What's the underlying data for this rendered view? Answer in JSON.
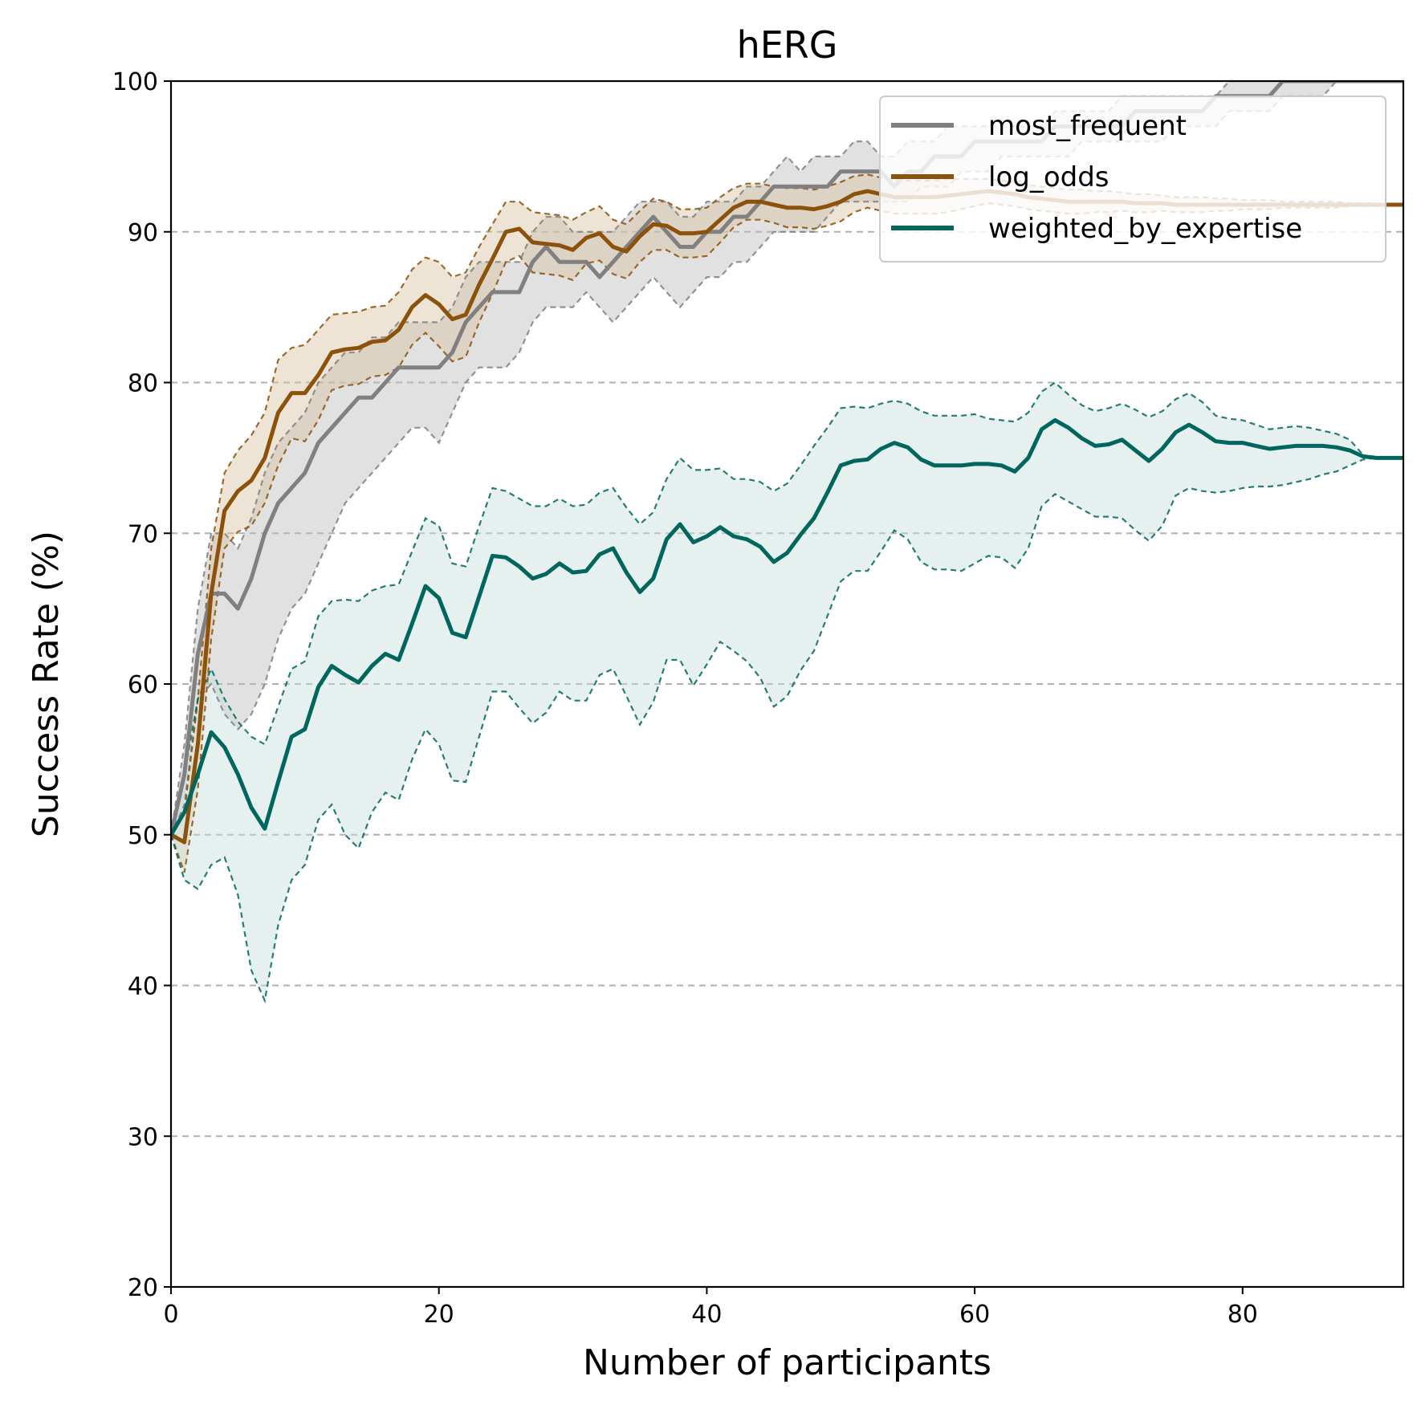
{
  "chart_data": {
    "type": "line",
    "title": "hERG",
    "xlabel": "Number of participants",
    "ylabel": "Success Rate (%)",
    "xlim": [
      0,
      92
    ],
    "ylim": [
      20,
      100
    ],
    "xticks": [
      0,
      20,
      40,
      60,
      80
    ],
    "yticks": [
      20,
      30,
      40,
      50,
      60,
      70,
      80,
      90,
      100
    ],
    "grid": "horizontal dashed",
    "legend_position": "top-right",
    "x": [
      0,
      1,
      2,
      3,
      4,
      5,
      6,
      7,
      8,
      9,
      10,
      11,
      12,
      13,
      14,
      15,
      16,
      17,
      18,
      19,
      20,
      21,
      22,
      23,
      24,
      25,
      26,
      27,
      28,
      29,
      30,
      31,
      32,
      33,
      34,
      35,
      36,
      37,
      38,
      39,
      40,
      41,
      42,
      43,
      44,
      45,
      46,
      47,
      48,
      49,
      50,
      51,
      52,
      53,
      54,
      55,
      56,
      57,
      58,
      59,
      60,
      61,
      62,
      63,
      64,
      65,
      66,
      67,
      68,
      69,
      70,
      71,
      72,
      73,
      74,
      75,
      76,
      77,
      78,
      79,
      80,
      81,
      82,
      83,
      84,
      85,
      86,
      87,
      88,
      89,
      90,
      91,
      92
    ],
    "series": [
      {
        "name": "most_frequent",
        "color": "#808080",
        "band_color": "#bdbdbd",
        "values": [
          50,
          54,
          62,
          66,
          66,
          65,
          67,
          70,
          72,
          73,
          74,
          76,
          77,
          78,
          79,
          79,
          80,
          81,
          81,
          81,
          81,
          82,
          84,
          85,
          86,
          86,
          86,
          88,
          89,
          88,
          88,
          88,
          87,
          88,
          89,
          90,
          91,
          90,
          89,
          89,
          90,
          90,
          91,
          91,
          92,
          93,
          93,
          93,
          93,
          93,
          94,
          94,
          94,
          94,
          93,
          94,
          94,
          95,
          95,
          95,
          96,
          96,
          96,
          96,
          96,
          96,
          97,
          97,
          97,
          97,
          97,
          97,
          98,
          98,
          98,
          98,
          98,
          98,
          99,
          99,
          99,
          99,
          99,
          100,
          100,
          100,
          100,
          100,
          100,
          100,
          100,
          100,
          100
        ],
        "upper": [
          50,
          56,
          65,
          70,
          70,
          69,
          71,
          74,
          76,
          77,
          78,
          80,
          81,
          82,
          82,
          83,
          83,
          84,
          84,
          84,
          84,
          85,
          87,
          88,
          88,
          88,
          88,
          90,
          91,
          91,
          90,
          90,
          90,
          90,
          91,
          92,
          92,
          92,
          91,
          91,
          92,
          92,
          92,
          93,
          93,
          94,
          95,
          94,
          95,
          95,
          95,
          96,
          96,
          95,
          95,
          96,
          96,
          96,
          97,
          97,
          97,
          97,
          97,
          97,
          97,
          97,
          98,
          98,
          98,
          98,
          98,
          99,
          99,
          99,
          99,
          99,
          99,
          99,
          99,
          100,
          100,
          100,
          100,
          100,
          100,
          100,
          100,
          100,
          100,
          100,
          100,
          100,
          100
        ],
        "lower": [
          50,
          52,
          59,
          60,
          58,
          57,
          58,
          60,
          63,
          65,
          66,
          68,
          70,
          72,
          73,
          74,
          75,
          76,
          77,
          77,
          76,
          78,
          80,
          81,
          81,
          81,
          82,
          84,
          85,
          85,
          85,
          86,
          85,
          84,
          85,
          86,
          87,
          86,
          85,
          86,
          87,
          87,
          88,
          88,
          89,
          90,
          90,
          90,
          90,
          91,
          92,
          92,
          92,
          92,
          92,
          92,
          93,
          93,
          93,
          94,
          94,
          94,
          95,
          95,
          95,
          95,
          95,
          95,
          96,
          96,
          96,
          96,
          96,
          96,
          96,
          97,
          97,
          97,
          97,
          98,
          98,
          98,
          98,
          99,
          99,
          99,
          99,
          100,
          100,
          100,
          100,
          100,
          100
        ]
      },
      {
        "name": "log_odds",
        "color": "#8c510a",
        "band_color": "#d8c3a5",
        "values": [
          50,
          49.5,
          56,
          66,
          71.5,
          72.8,
          73.5,
          75,
          78,
          79.3,
          79.3,
          80.5,
          82,
          82.2,
          82.3,
          82.7,
          82.8,
          83.5,
          85,
          85.8,
          85.2,
          84.2,
          84.5,
          86.5,
          88.2,
          90,
          90.2,
          89.3,
          89.2,
          89.1,
          88.8,
          89.6,
          89.9,
          89,
          88.7,
          89.7,
          90.5,
          90.4,
          89.9,
          89.9,
          90,
          90.8,
          91.6,
          92,
          92,
          91.8,
          91.6,
          91.6,
          91.5,
          91.7,
          92,
          92.5,
          92.7,
          92.5,
          92.3,
          92.3,
          92.3,
          92.3,
          92.4,
          92.5,
          92.6,
          92.7,
          92.6,
          92.5,
          92.3,
          92.2,
          92.1,
          92,
          92,
          92,
          92,
          92,
          91.9,
          91.9,
          91.9,
          91.8,
          91.8,
          91.8,
          91.8,
          91.8,
          91.8,
          91.8,
          91.8,
          91.8,
          91.8,
          91.8,
          91.8,
          91.8,
          91.8,
          91.8,
          91.8,
          91.8,
          91.8
        ],
        "upper": [
          50,
          51.5,
          59,
          69,
          74,
          75.5,
          76.5,
          78,
          81.5,
          82.3,
          82.5,
          83.5,
          84.5,
          84.6,
          84.7,
          85,
          85.1,
          86,
          87.5,
          88.3,
          88,
          87,
          87.3,
          89,
          90.5,
          92,
          92,
          91.3,
          91.2,
          91.1,
          90.8,
          91.3,
          91.7,
          90.8,
          90.5,
          91.4,
          92.2,
          92,
          91.5,
          91.5,
          91.6,
          92.3,
          92.9,
          93.2,
          93.2,
          93,
          92.9,
          92.9,
          92.8,
          93,
          93.3,
          93.7,
          93.8,
          93.6,
          93.4,
          93.4,
          93.4,
          93.4,
          93.5,
          93.5,
          93.5,
          93.5,
          93.4,
          93.3,
          93.1,
          93,
          92.9,
          92.8,
          92.8,
          92.7,
          92.7,
          92.6,
          92.5,
          92.5,
          92.4,
          92.3,
          92.3,
          92.3,
          92.2,
          92.2,
          92.1,
          92.1,
          92.1,
          92,
          92,
          92,
          92,
          92,
          91.9,
          91.9,
          91.9,
          91.8,
          91.8
        ],
        "lower": [
          50,
          47.5,
          53,
          63,
          69,
          70.1,
          70.5,
          72,
          74.5,
          76.3,
          76.1,
          77.5,
          79.5,
          79.8,
          79.9,
          80.4,
          80.5,
          81,
          82.5,
          83.3,
          82.4,
          81.4,
          81.7,
          84,
          85.9,
          88,
          88.4,
          87.3,
          87.2,
          87.1,
          86.8,
          87.9,
          88.1,
          87.2,
          86.9,
          88,
          88.8,
          88.8,
          88.3,
          88.3,
          88.4,
          89.3,
          90.3,
          90.8,
          90.8,
          90.6,
          90.3,
          90.3,
          90.2,
          90.4,
          90.7,
          91.3,
          91.6,
          91.4,
          91.2,
          91.2,
          91.2,
          91.2,
          91.3,
          91.5,
          91.7,
          91.9,
          91.8,
          91.7,
          91.5,
          91.4,
          91.3,
          91.2,
          91.2,
          91.3,
          91.3,
          91.4,
          91.3,
          91.3,
          91.4,
          91.3,
          91.3,
          91.3,
          91.4,
          91.4,
          91.5,
          91.5,
          91.5,
          91.6,
          91.6,
          91.6,
          91.6,
          91.6,
          91.7,
          91.7,
          91.7,
          91.8,
          91.8
        ]
      },
      {
        "name": "weighted_by_expertise",
        "color": "#01665e",
        "band_color": "#c7e0db",
        "values": [
          50,
          51.5,
          54,
          56.8,
          55.8,
          54,
          51.8,
          50.4,
          53.5,
          56.5,
          57,
          59.8,
          61.2,
          60.6,
          60.1,
          61.2,
          62,
          61.6,
          64,
          66.5,
          65.7,
          63.4,
          63.1,
          65.8,
          68.5,
          68.4,
          67.8,
          67,
          67.3,
          68,
          67.4,
          67.5,
          68.6,
          69,
          67.4,
          66.1,
          67,
          69.6,
          70.6,
          69.4,
          69.8,
          70.4,
          69.8,
          69.6,
          69.1,
          68.1,
          68.7,
          69.9,
          71,
          72.7,
          74.5,
          74.8,
          74.9,
          75.6,
          76,
          75.7,
          74.9,
          74.5,
          74.5,
          74.5,
          74.6,
          74.6,
          74.5,
          74.1,
          75,
          76.9,
          77.5,
          77,
          76.3,
          75.8,
          75.9,
          76.2,
          75.5,
          74.8,
          75.6,
          76.7,
          77.2,
          76.7,
          76.1,
          76,
          76,
          75.8,
          75.6,
          75.7,
          75.8,
          75.8,
          75.8,
          75.7,
          75.5,
          75.1,
          75,
          75,
          75
        ],
        "upper": [
          50,
          54,
          59,
          61,
          59,
          57.5,
          56.5,
          56,
          58.5,
          61,
          61.5,
          64.5,
          65.5,
          65.6,
          65.5,
          66.2,
          66.5,
          66.6,
          68.8,
          71,
          70.5,
          68,
          67.8,
          70.5,
          73,
          72.8,
          72.3,
          71.8,
          71.8,
          72.3,
          71.8,
          71.9,
          72.7,
          73,
          71.7,
          70.6,
          71.4,
          73.6,
          75,
          74.2,
          74.2,
          74.3,
          73.6,
          73.6,
          73.4,
          72.8,
          73.3,
          74.5,
          75.8,
          77,
          78.3,
          78.4,
          78.3,
          78.6,
          78.8,
          78.6,
          78.1,
          77.8,
          77.8,
          77.8,
          77.9,
          77.6,
          77.5,
          77.4,
          78,
          79.4,
          80,
          79.2,
          78.5,
          78.1,
          78.3,
          78.6,
          78.2,
          77.7,
          78.1,
          78.9,
          79.3,
          78.7,
          77.8,
          77.6,
          77.5,
          77.2,
          76.9,
          77,
          77.1,
          77,
          76.8,
          76.6,
          76.2,
          75.2,
          75,
          75,
          75
        ],
        "lower": [
          50,
          47,
          46.4,
          48,
          48.5,
          46,
          41,
          39,
          44,
          47,
          48,
          51,
          52,
          50,
          49.1,
          51.5,
          52.8,
          52.3,
          55,
          57,
          56,
          53.6,
          53.5,
          56.5,
          59.5,
          59.5,
          58.4,
          57.4,
          58.1,
          59.5,
          58.9,
          58.9,
          60.6,
          61,
          59.2,
          57.3,
          58.8,
          61.6,
          61.6,
          59.9,
          61.3,
          62.8,
          62.2,
          61.5,
          60.4,
          58.5,
          59.2,
          60.9,
          62.2,
          64.5,
          66.8,
          67.5,
          67.5,
          68.8,
          70.2,
          69.6,
          68.1,
          67.6,
          67.6,
          67.5,
          68,
          68.5,
          68.4,
          67.7,
          69,
          71.8,
          72.6,
          72.1,
          71.6,
          71.1,
          71.1,
          71,
          70.2,
          69.5,
          70.5,
          72.5,
          73,
          72.8,
          72.7,
          72.8,
          73,
          73.1,
          73.1,
          73.2,
          73.4,
          73.6,
          73.9,
          74.1,
          74.5,
          74.9,
          75,
          75,
          75
        ]
      }
    ]
  }
}
